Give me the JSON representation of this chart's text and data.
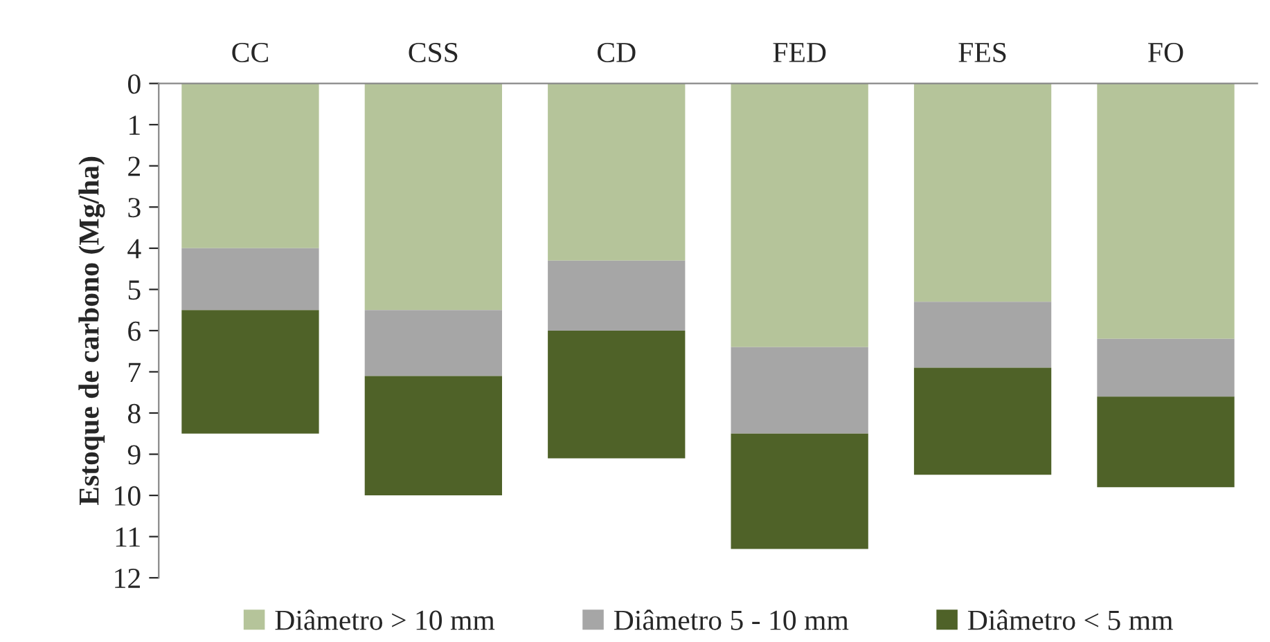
{
  "chart_data": {
    "type": "bar",
    "stacked": true,
    "ylabel": "Estoque de carbono (Mg/ha)",
    "categories": [
      "CC",
      "CSS",
      "CD",
      "FED",
      "FES",
      "FO"
    ],
    "series": [
      {
        "name": "Diâmetro > 10 mm",
        "color": "#b5c49a",
        "values": [
          4.0,
          5.5,
          4.3,
          6.4,
          5.3,
          6.2
        ]
      },
      {
        "name": "Diâmetro 5 - 10 mm",
        "color": "#a6a6a6",
        "values": [
          1.5,
          1.6,
          1.7,
          2.1,
          1.6,
          1.4
        ]
      },
      {
        "name": "Diâmetro < 5 mm",
        "color": "#4f6228",
        "values": [
          3.0,
          2.9,
          3.1,
          2.8,
          2.6,
          2.2
        ]
      }
    ],
    "ylim": [
      12,
      0
    ],
    "yticks": [
      0,
      1,
      2,
      3,
      4,
      5,
      6,
      7,
      8,
      9,
      10,
      11,
      12
    ],
    "grid": false,
    "legend": "bottom"
  }
}
